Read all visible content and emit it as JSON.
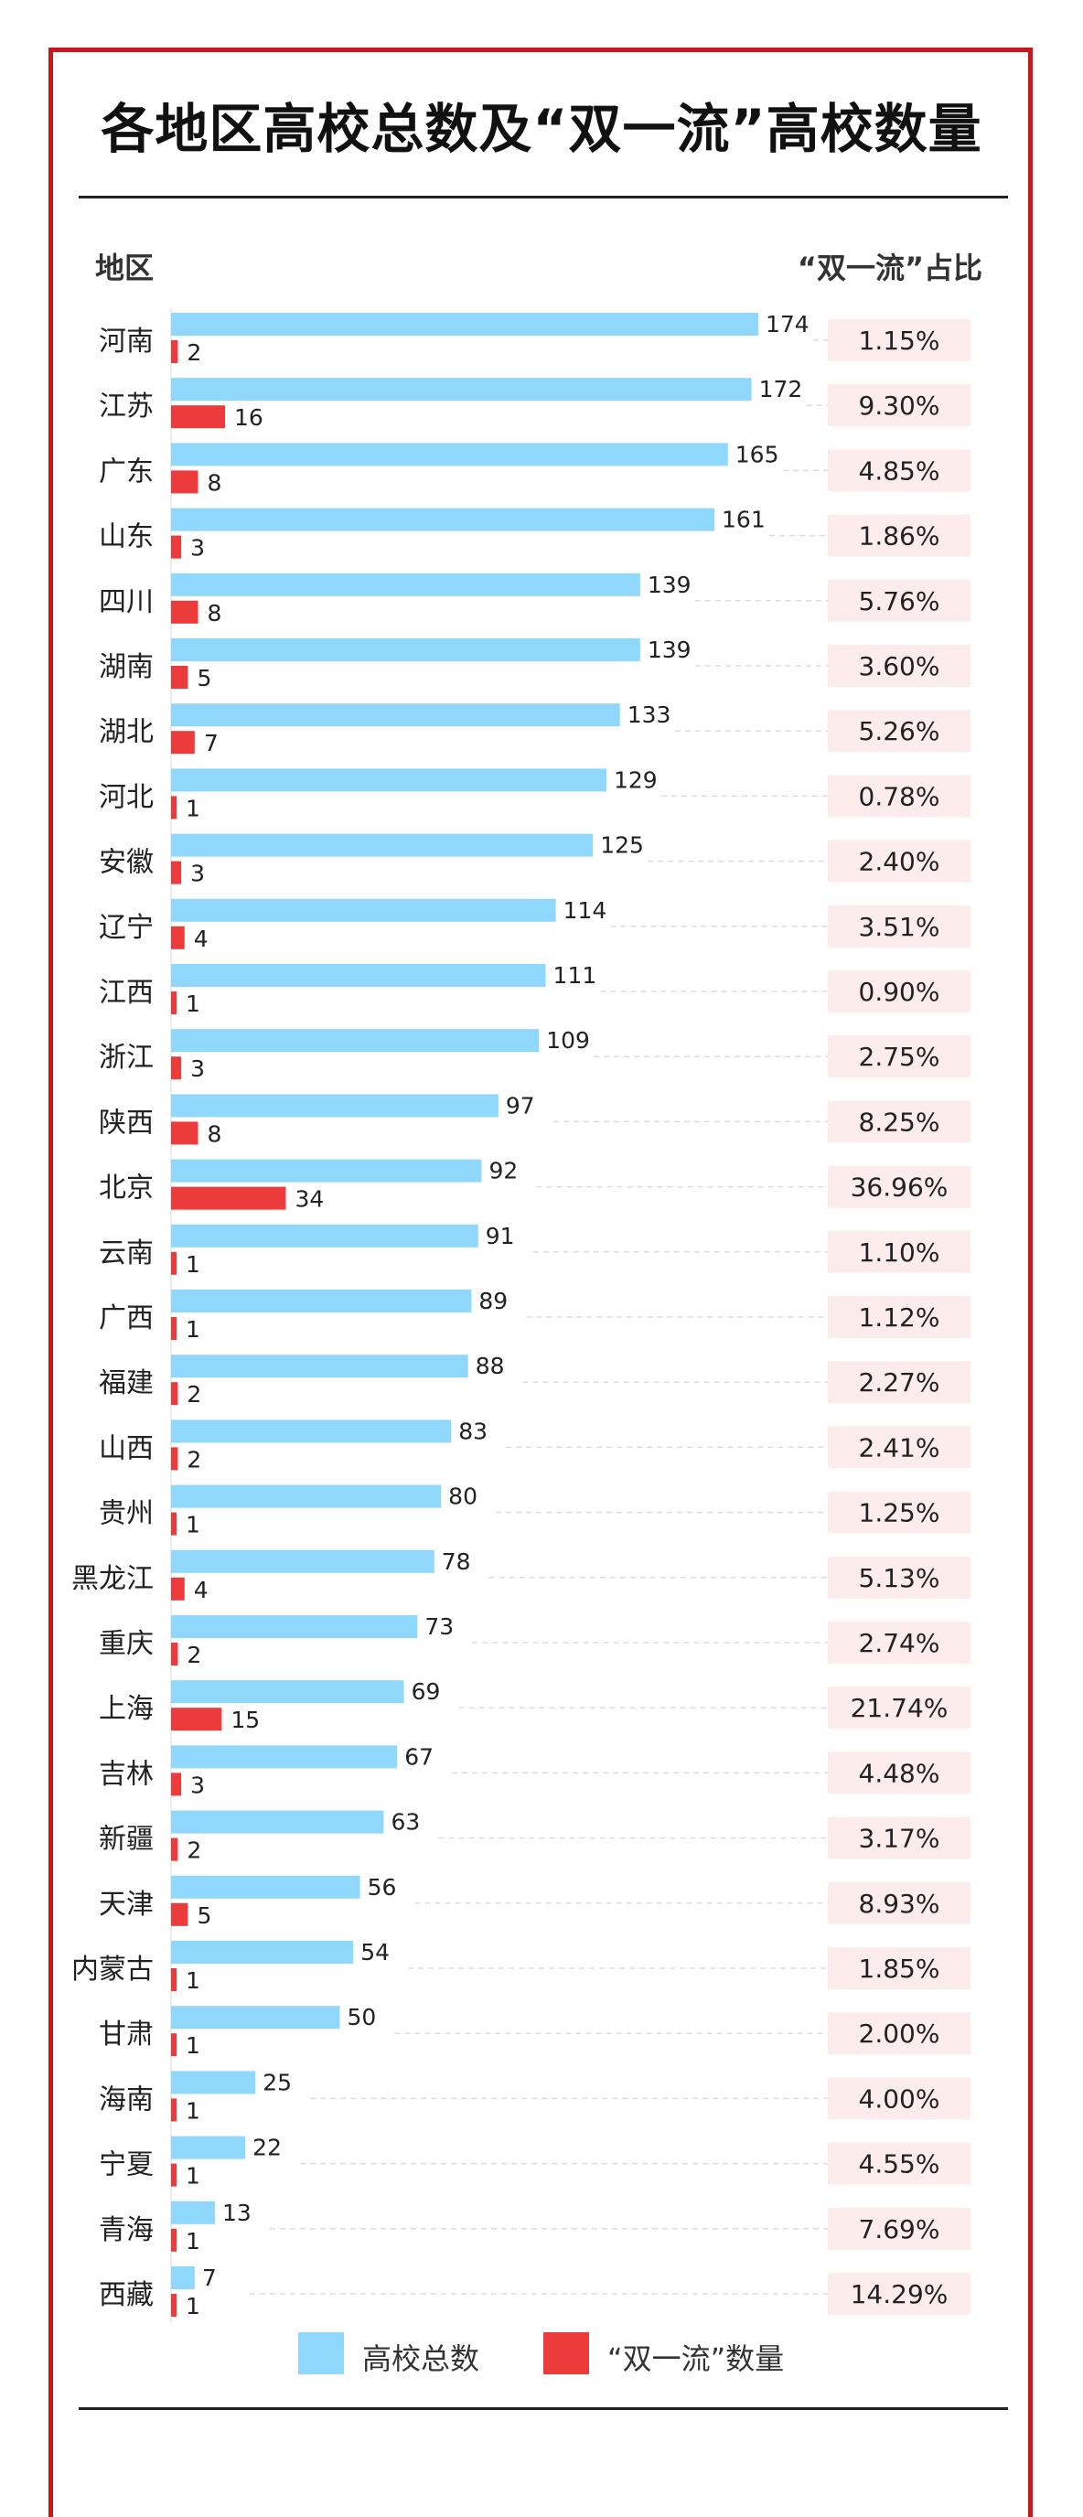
{
  "title": "各地区高校总数及“双一流”高校数量",
  "headers": {
    "region": "地区",
    "share": "“双一流”占比"
  },
  "legend": {
    "total": "高校总数",
    "double_first_class": "“双一流”数量"
  },
  "colors": {
    "total": "#8fd8fb",
    "double_first_class": "#ec3b3b",
    "frame": "#c8161d",
    "share_bg": "#fdecec"
  },
  "chart_data": {
    "type": "bar",
    "orientation": "horizontal",
    "title": "各地区高校总数及“双一流”高校数量",
    "xlim": [
      0,
      174
    ],
    "categories": [
      "河南",
      "江苏",
      "广东",
      "山东",
      "四川",
      "湖南",
      "湖北",
      "河北",
      "安徽",
      "辽宁",
      "江西",
      "浙江",
      "陕西",
      "北京",
      "云南",
      "广西",
      "福建",
      "山西",
      "贵州",
      "黑龙江",
      "重庆",
      "上海",
      "吉林",
      "新疆",
      "天津",
      "内蒙古",
      "甘肃",
      "海南",
      "宁夏",
      "青海",
      "西藏"
    ],
    "series": [
      {
        "name": "高校总数",
        "values": [
          174,
          172,
          165,
          161,
          139,
          139,
          133,
          129,
          125,
          114,
          111,
          109,
          97,
          92,
          91,
          89,
          88,
          83,
          80,
          78,
          73,
          69,
          67,
          63,
          56,
          54,
          50,
          25,
          22,
          13,
          7
        ]
      },
      {
        "name": "“双一流”数量",
        "values": [
          2,
          16,
          8,
          3,
          8,
          5,
          7,
          1,
          3,
          4,
          1,
          3,
          8,
          34,
          1,
          1,
          2,
          2,
          1,
          4,
          2,
          15,
          3,
          2,
          5,
          1,
          1,
          1,
          1,
          1,
          1
        ]
      }
    ],
    "share": [
      "1.15%",
      "9.30%",
      "4.85%",
      "1.86%",
      "5.76%",
      "3.60%",
      "5.26%",
      "0.78%",
      "2.40%",
      "3.51%",
      "0.90%",
      "2.75%",
      "8.25%",
      "36.96%",
      "1.10%",
      "1.12%",
      "2.27%",
      "2.41%",
      "1.25%",
      "5.13%",
      "2.74%",
      "21.74%",
      "4.48%",
      "3.17%",
      "8.93%",
      "1.85%",
      "2.00%",
      "4.00%",
      "4.55%",
      "7.69%",
      "14.29%"
    ]
  }
}
